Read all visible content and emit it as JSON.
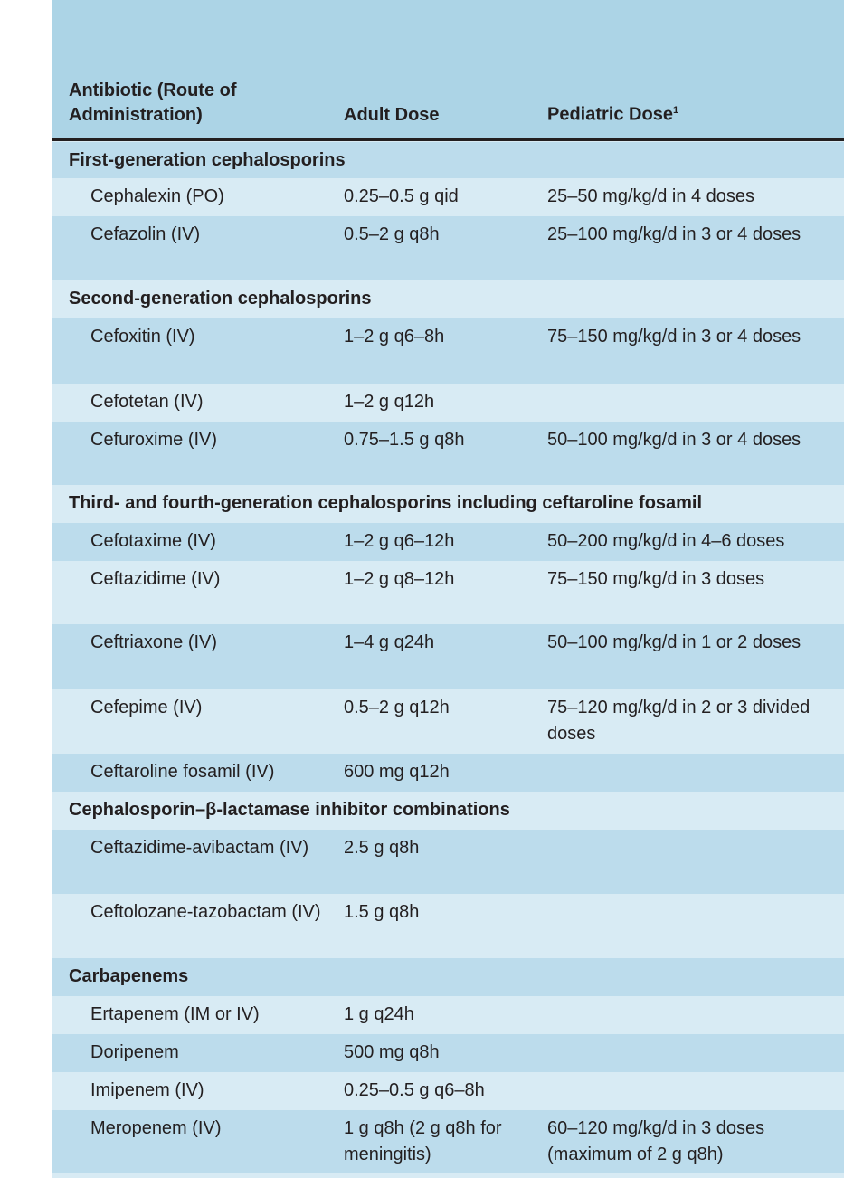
{
  "header": {
    "col1": "Antibiotic (Route of Administration)",
    "col2": "Adult Dose",
    "col3": "Pediatric Dose",
    "col3_footnote": "1"
  },
  "rows": [
    {
      "section": "First-generation cephalosporins"
    },
    {
      "drug": "Cephalexin (PO)",
      "adult": "0.25–0.5 g qid",
      "pediatric": "25–50 mg/kg/d in 4 doses"
    },
    {
      "drug": "Cefazolin (IV)",
      "adult": "0.5–2 g q8h",
      "pediatric": "25–100 mg/kg/d in 3 or 4 doses"
    },
    {
      "section": "Second-generation cephalosporins"
    },
    {
      "drug": "Cefoxitin (IV)",
      "adult": "1–2 g q6–8h",
      "pediatric": "75–150 mg/kg/d in 3 or 4 doses"
    },
    {
      "drug": "Cefotetan (IV)",
      "adult": "1–2 g q12h",
      "pediatric": ""
    },
    {
      "drug": "Cefuroxime (IV)",
      "adult": "0.75–1.5 g q8h",
      "pediatric": "50–100 mg/kg/d in 3 or 4 doses"
    },
    {
      "section": "Third- and fourth-generation cephalosporins including ceftaroline fosamil"
    },
    {
      "drug": "Cefotaxime (IV)",
      "adult": "1–2 g q6–12h",
      "pediatric": "50–200 mg/kg/d in 4–6 doses"
    },
    {
      "drug": "Ceftazidime (IV)",
      "adult": "1–2 g q8–12h",
      "pediatric": "75–150 mg/kg/d in 3 doses"
    },
    {
      "drug": "Ceftriaxone (IV)",
      "adult": "1–4 g q24h",
      "pediatric": "50–100 mg/kg/d in 1 or 2 doses"
    },
    {
      "drug": "Cefepime (IV)",
      "adult": "0.5–2 g q12h",
      "pediatric": "75–120 mg/kg/d in 2 or 3 divided doses"
    },
    {
      "drug": "Ceftaroline fosamil (IV)",
      "adult": "600 mg q12h",
      "pediatric": ""
    },
    {
      "section": "Cephalosporin–β-lactamase inhibitor combinations"
    },
    {
      "drug": "Ceftazidime-avibactam (IV)",
      "adult": "2.5 g q8h",
      "pediatric": ""
    },
    {
      "drug": "Ceftolozane-tazobactam (IV)",
      "adult": "1.5 g q8h",
      "pediatric": ""
    },
    {
      "section": "Carbapenems"
    },
    {
      "drug": "Ertapenem (IM or IV)",
      "adult": "1 g q24h",
      "pediatric": ""
    },
    {
      "drug": "Doripenem",
      "adult": "500 mg q8h",
      "pediatric": ""
    },
    {
      "drug": "Imipenem (IV)",
      "adult": "0.25–0.5 g q6–8h",
      "pediatric": ""
    },
    {
      "drug": "Meropenem (IV)",
      "adult": "1 g q8h (2 g q8h for meningitis)",
      "pediatric": "60–120 mg/kg/d in 3 doses (maximum of 2 g q8h)"
    }
  ]
}
